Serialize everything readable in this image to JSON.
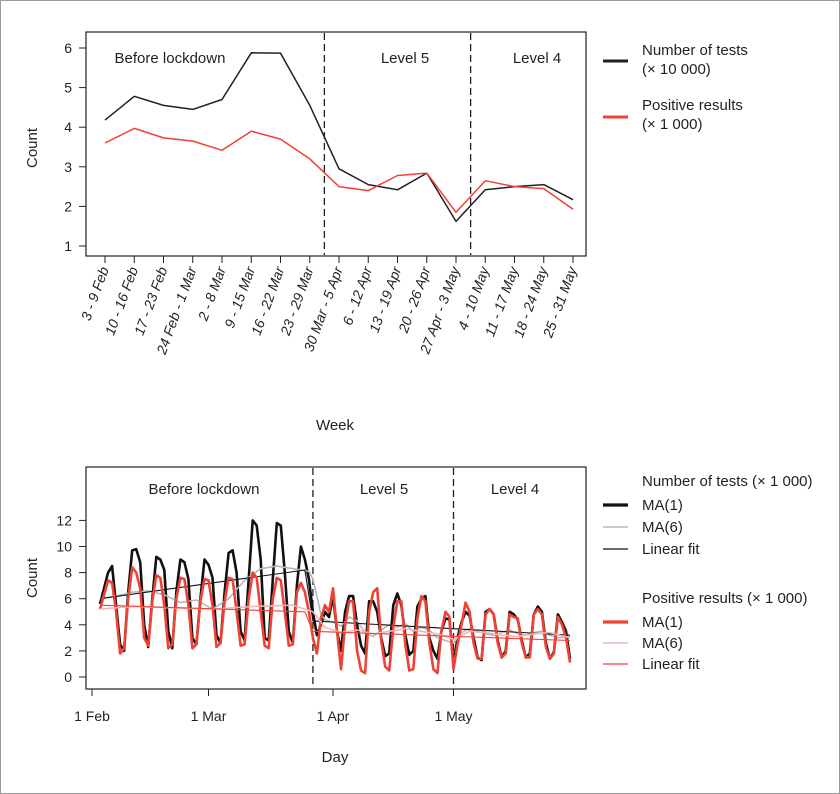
{
  "chart_data": [
    {
      "type": "line",
      "title": "",
      "xlabel": "Week",
      "ylabel": "Count",
      "ylim": [
        1,
        6
      ],
      "yticks": [
        "1",
        "2",
        "3",
        "4",
        "5",
        "6"
      ],
      "grid": false,
      "legend_position": "right",
      "categories": [
        "3 - 9 Feb",
        "10 - 16 Feb",
        "17 - 23 Feb",
        "24 Feb - 1 Mar",
        "2 - 8 Mar",
        "9 - 15 Mar",
        "16 - 22 Mar",
        "23 - 29 Mar",
        "30 Mar - 5 Apr",
        "6 - 12 Apr",
        "13 - 19 Apr",
        "20 - 26 Apr",
        "27 Apr - 3 May",
        "4 - 10 May",
        "11 - 17 May",
        "18 - 24 May",
        "25 - 31 May"
      ],
      "phases": [
        {
          "label": "Before lockdown"
        },
        {
          "label": "Level 5",
          "start_after": "23 - 29 Mar"
        },
        {
          "label": "Level 4",
          "start_after": "27 Apr - 3 May"
        }
      ],
      "series": [
        {
          "name": "Number of tests",
          "unit": "(× 10 000)",
          "color": "#231f20",
          "values": [
            4.18,
            4.78,
            4.55,
            4.45,
            4.7,
            5.88,
            5.87,
            4.55,
            2.95,
            2.55,
            2.42,
            2.84,
            1.62,
            2.42,
            2.5,
            2.55,
            2.17
          ]
        },
        {
          "name": "Positive results",
          "unit": "(× 1 000)",
          "color": "#ef4136",
          "values": [
            3.6,
            3.97,
            3.73,
            3.65,
            3.42,
            3.9,
            3.7,
            3.2,
            2.5,
            2.4,
            2.78,
            2.84,
            1.85,
            2.65,
            2.5,
            2.45,
            1.93
          ]
        }
      ]
    },
    {
      "type": "line",
      "title": "",
      "xlabel": "Day",
      "ylabel": "Count",
      "ylim": [
        -0.5,
        13
      ],
      "yticks": [
        "0",
        "2",
        "4",
        "6",
        "8",
        "10",
        "12"
      ],
      "xlim": [
        0,
        120
      ],
      "xticks": [
        {
          "label": "1 Feb",
          "day": 0
        },
        {
          "label": "1 Mar",
          "day": 29
        },
        {
          "label": "1 Apr",
          "day": 60
        },
        {
          "label": "1 May",
          "day": 90
        }
      ],
      "grid": false,
      "legend_position": "right",
      "phases": [
        {
          "label": "Before lockdown"
        },
        {
          "label": "Level 5",
          "start_day": 55
        },
        {
          "label": "Level 4",
          "start_day": 90
        }
      ],
      "legend": {
        "groups": [
          {
            "title": "Number of tests (× 1 000)",
            "entries": [
              {
                "label": "MA(1)",
                "color": "#111111",
                "width": 3.2
              },
              {
                "label": "MA(6)",
                "color": "#b8b8b8",
                "width": 1.6
              },
              {
                "label": "Linear fit",
                "color": "#111111",
                "width": 1.2
              }
            ]
          },
          {
            "title": "Positive results (× 1 000)",
            "entries": [
              {
                "label": "MA(1)",
                "color": "#ef4136",
                "width": 3.2
              },
              {
                "label": "MA(6)",
                "color": "#f6b3b3",
                "width": 1.6
              },
              {
                "label": "Linear fit",
                "color": "#ef4136",
                "width": 1.2
              }
            ]
          }
        ]
      },
      "series": [
        {
          "name": "Number of tests MA(1)",
          "color": "#111111",
          "width": 2.6,
          "x": [
            2,
            4,
            5,
            6,
            7,
            8,
            9,
            10,
            11,
            12,
            13,
            14,
            15,
            16,
            17,
            18,
            19,
            20,
            21,
            22,
            23,
            24,
            25,
            26,
            27,
            28,
            29,
            30,
            31,
            32,
            33,
            34,
            35,
            36,
            37,
            38,
            39,
            40,
            41,
            42,
            43,
            44,
            45,
            46,
            47,
            48,
            49,
            50,
            51,
            52,
            53,
            54,
            55,
            56,
            57,
            58,
            59,
            60,
            61,
            62,
            63,
            64,
            65,
            66,
            67,
            68,
            69,
            70,
            71,
            72,
            73,
            74,
            75,
            76,
            77,
            78,
            79,
            80,
            81,
            82,
            83,
            84,
            85,
            86,
            87,
            88,
            89,
            90,
            91,
            92,
            93,
            94,
            95,
            96,
            97,
            98,
            99,
            100,
            101,
            102,
            103,
            104,
            105,
            106,
            107,
            108,
            109,
            110,
            111,
            112,
            113,
            114,
            115,
            116,
            117,
            118,
            119
          ],
          "y": [
            5.6,
            8.0,
            8.5,
            5.5,
            2.5,
            2.0,
            6.5,
            9.7,
            9.8,
            8.8,
            4.0,
            2.3,
            6.0,
            9.2,
            9.0,
            8.2,
            3.5,
            2.2,
            6.5,
            9.0,
            8.8,
            7.5,
            3.0,
            2.5,
            6.0,
            9.0,
            8.6,
            7.6,
            3.2,
            2.6,
            6.5,
            9.5,
            9.7,
            8.0,
            3.5,
            2.8,
            7.5,
            12.0,
            11.6,
            9.0,
            3.0,
            2.8,
            7.5,
            11.8,
            11.6,
            8.0,
            3.5,
            2.6,
            7.0,
            10.0,
            9.0,
            7.5,
            5.0,
            3.2,
            4.0,
            5.0,
            4.6,
            6.2,
            3.5,
            2.0,
            5.0,
            6.2,
            6.2,
            4.0,
            2.4,
            1.8,
            5.8,
            5.8,
            5.0,
            3.0,
            1.6,
            1.8,
            5.5,
            6.4,
            5.5,
            3.2,
            1.7,
            2.0,
            5.4,
            6.0,
            6.2,
            3.0,
            2.0,
            1.4,
            3.5,
            4.5,
            4.4,
            1.0,
            3.0,
            4.2,
            5.0,
            4.7,
            3.0,
            1.5,
            1.3,
            5.0,
            5.2,
            4.8,
            2.8,
            1.5,
            2.0,
            5.0,
            4.8,
            4.4,
            2.8,
            1.5,
            1.8,
            4.8,
            5.4,
            5.0,
            2.6,
            1.4,
            1.9,
            4.8,
            4.2,
            3.5,
            1.4
          ]
        },
        {
          "name": "Number of tests MA(6)",
          "color": "#b8b8b8",
          "width": 1.6,
          "x": [
            2,
            6,
            10,
            14,
            18,
            22,
            26,
            30,
            34,
            38,
            42,
            46,
            50,
            54,
            55,
            56,
            57,
            58,
            60,
            62,
            64,
            66,
            68,
            70,
            72,
            74,
            76,
            78,
            80,
            82,
            84,
            86,
            88,
            90,
            92,
            94,
            96,
            98,
            100,
            102,
            104,
            106,
            108,
            110,
            112,
            114,
            116,
            119
          ],
          "y": [
            6.0,
            6.2,
            6.5,
            6.6,
            6.3,
            5.7,
            5.9,
            5.2,
            6.0,
            7.4,
            8.3,
            8.5,
            8.3,
            8.1,
            7.5,
            6.2,
            4.8,
            4.4,
            4.2,
            3.9,
            4.6,
            4.3,
            3.4,
            3.1,
            3.6,
            4.0,
            3.8,
            4.1,
            3.5,
            3.8,
            3.6,
            3.0,
            2.8,
            2.6,
            3.4,
            3.7,
            3.5,
            3.3,
            3.2,
            3.4,
            3.6,
            3.3,
            3.2,
            3.4,
            3.5,
            3.2,
            3.0,
            3.1
          ]
        },
        {
          "name": "Number of tests Linear fit",
          "color": "#111111",
          "width": 1.1,
          "x": [
            2,
            53,
            55,
            119
          ],
          "y": [
            6.0,
            8.2,
            4.3,
            3.2
          ]
        },
        {
          "name": "Positive results MA(1)",
          "color": "#ef4136",
          "width": 2.6,
          "x": [
            2,
            4,
            5,
            6,
            7,
            8,
            9,
            10,
            11,
            12,
            13,
            14,
            15,
            16,
            17,
            18,
            19,
            20,
            21,
            22,
            23,
            24,
            25,
            26,
            27,
            28,
            29,
            30,
            31,
            32,
            33,
            34,
            35,
            36,
            37,
            38,
            39,
            40,
            41,
            42,
            43,
            44,
            45,
            46,
            47,
            48,
            49,
            50,
            51,
            52,
            53,
            54,
            55,
            56,
            57,
            58,
            59,
            60,
            61,
            62,
            63,
            64,
            65,
            66,
            67,
            68,
            69,
            70,
            71,
            72,
            73,
            74,
            75,
            76,
            77,
            78,
            79,
            80,
            81,
            82,
            83,
            84,
            85,
            86,
            87,
            88,
            89,
            90,
            91,
            92,
            93,
            94,
            95,
            96,
            97,
            98,
            99,
            100,
            101,
            102,
            103,
            104,
            105,
            106,
            107,
            108,
            109,
            110,
            111,
            112,
            113,
            114,
            115,
            116,
            117,
            118,
            119
          ],
          "y": [
            5.2,
            7.4,
            7.2,
            5.0,
            1.8,
            2.2,
            6.0,
            8.4,
            8.0,
            6.8,
            3.0,
            2.4,
            5.8,
            7.8,
            7.6,
            5.5,
            2.2,
            2.5,
            6.0,
            7.6,
            7.5,
            5.5,
            2.2,
            2.5,
            5.8,
            7.5,
            7.4,
            5.5,
            2.3,
            2.6,
            5.8,
            7.6,
            7.5,
            5.0,
            2.4,
            2.5,
            6.0,
            8.0,
            7.6,
            5.0,
            2.4,
            2.2,
            6.0,
            7.6,
            7.4,
            5.0,
            2.4,
            2.5,
            6.5,
            7.2,
            6.5,
            5.0,
            3.0,
            1.8,
            4.5,
            5.5,
            5.0,
            6.8,
            3.5,
            0.6,
            4.0,
            5.8,
            5.8,
            2.0,
            0.5,
            0.3,
            5.0,
            6.5,
            6.8,
            2.8,
            0.8,
            0.5,
            3.8,
            5.8,
            5.8,
            2.5,
            0.5,
            0.6,
            4.5,
            6.2,
            5.8,
            2.6,
            0.6,
            0.3,
            3.5,
            5.0,
            4.6,
            0.6,
            2.5,
            4.0,
            5.7,
            5.0,
            2.6,
            1.4,
            1.4,
            4.8,
            5.2,
            4.8,
            2.6,
            1.5,
            1.8,
            4.8,
            4.6,
            4.5,
            2.6,
            1.5,
            1.5,
            4.8,
            5.2,
            4.8,
            2.3,
            1.4,
            1.8,
            4.6,
            4.0,
            3.0,
            1.1
          ]
        },
        {
          "name": "Positive results MA(6)",
          "color": "#f6b3b3",
          "width": 1.6,
          "x": [
            2,
            10,
            20,
            30,
            40,
            50,
            55,
            58,
            62,
            66,
            70,
            74,
            78,
            82,
            86,
            90,
            94,
            98,
            102,
            106,
            110,
            114,
            119
          ],
          "y": [
            5.2,
            5.4,
            5.3,
            5.2,
            5.4,
            5.5,
            5.0,
            3.8,
            3.4,
            3.6,
            3.3,
            3.5,
            3.7,
            3.5,
            3.3,
            2.9,
            3.5,
            3.4,
            3.2,
            3.1,
            3.3,
            3.4,
            3.0
          ]
        },
        {
          "name": "Positive results Linear fit",
          "color": "#ef4136",
          "width": 1.1,
          "x": [
            2,
            53,
            55,
            119
          ],
          "y": [
            5.5,
            5.0,
            3.5,
            2.8
          ]
        }
      ]
    }
  ]
}
